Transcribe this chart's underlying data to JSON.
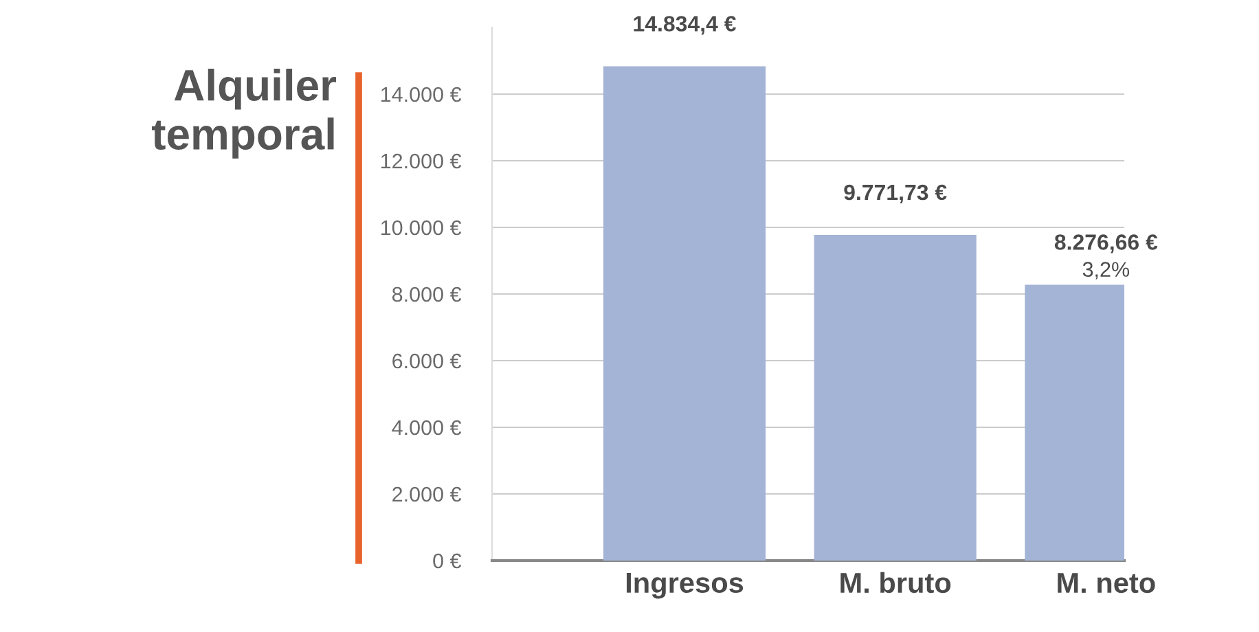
{
  "chart_data": {
    "type": "bar",
    "title": "Alquiler\ntemporal",
    "categories": [
      "Ingresos",
      "M. bruto",
      "M. neto"
    ],
    "values": [
      14834.4,
      9771.73,
      8276.66
    ],
    "color": "#a4b4d6",
    "value_labels": [
      "14.834,4 €",
      "9.771,73 €",
      "8.276,66 €"
    ],
    "annotations": [
      {
        "text": "3,2%",
        "x": "M. neto",
        "y": 8276.66
      }
    ],
    "ylim": [
      0,
      16000
    ],
    "yticks": [
      {
        "value": 0,
        "label": "0 €"
      },
      {
        "value": 2000,
        "label": "2.000 €"
      },
      {
        "value": 4000,
        "label": "4.000 €"
      },
      {
        "value": 6000,
        "label": "6.000 €"
      },
      {
        "value": 8000,
        "label": "8.000 €"
      },
      {
        "value": 10000,
        "label": "10.000 €"
      },
      {
        "value": 12000,
        "label": "12.000 €"
      },
      {
        "value": 14000,
        "label": "14.000 €"
      }
    ],
    "grid": "y",
    "legend": false
  }
}
